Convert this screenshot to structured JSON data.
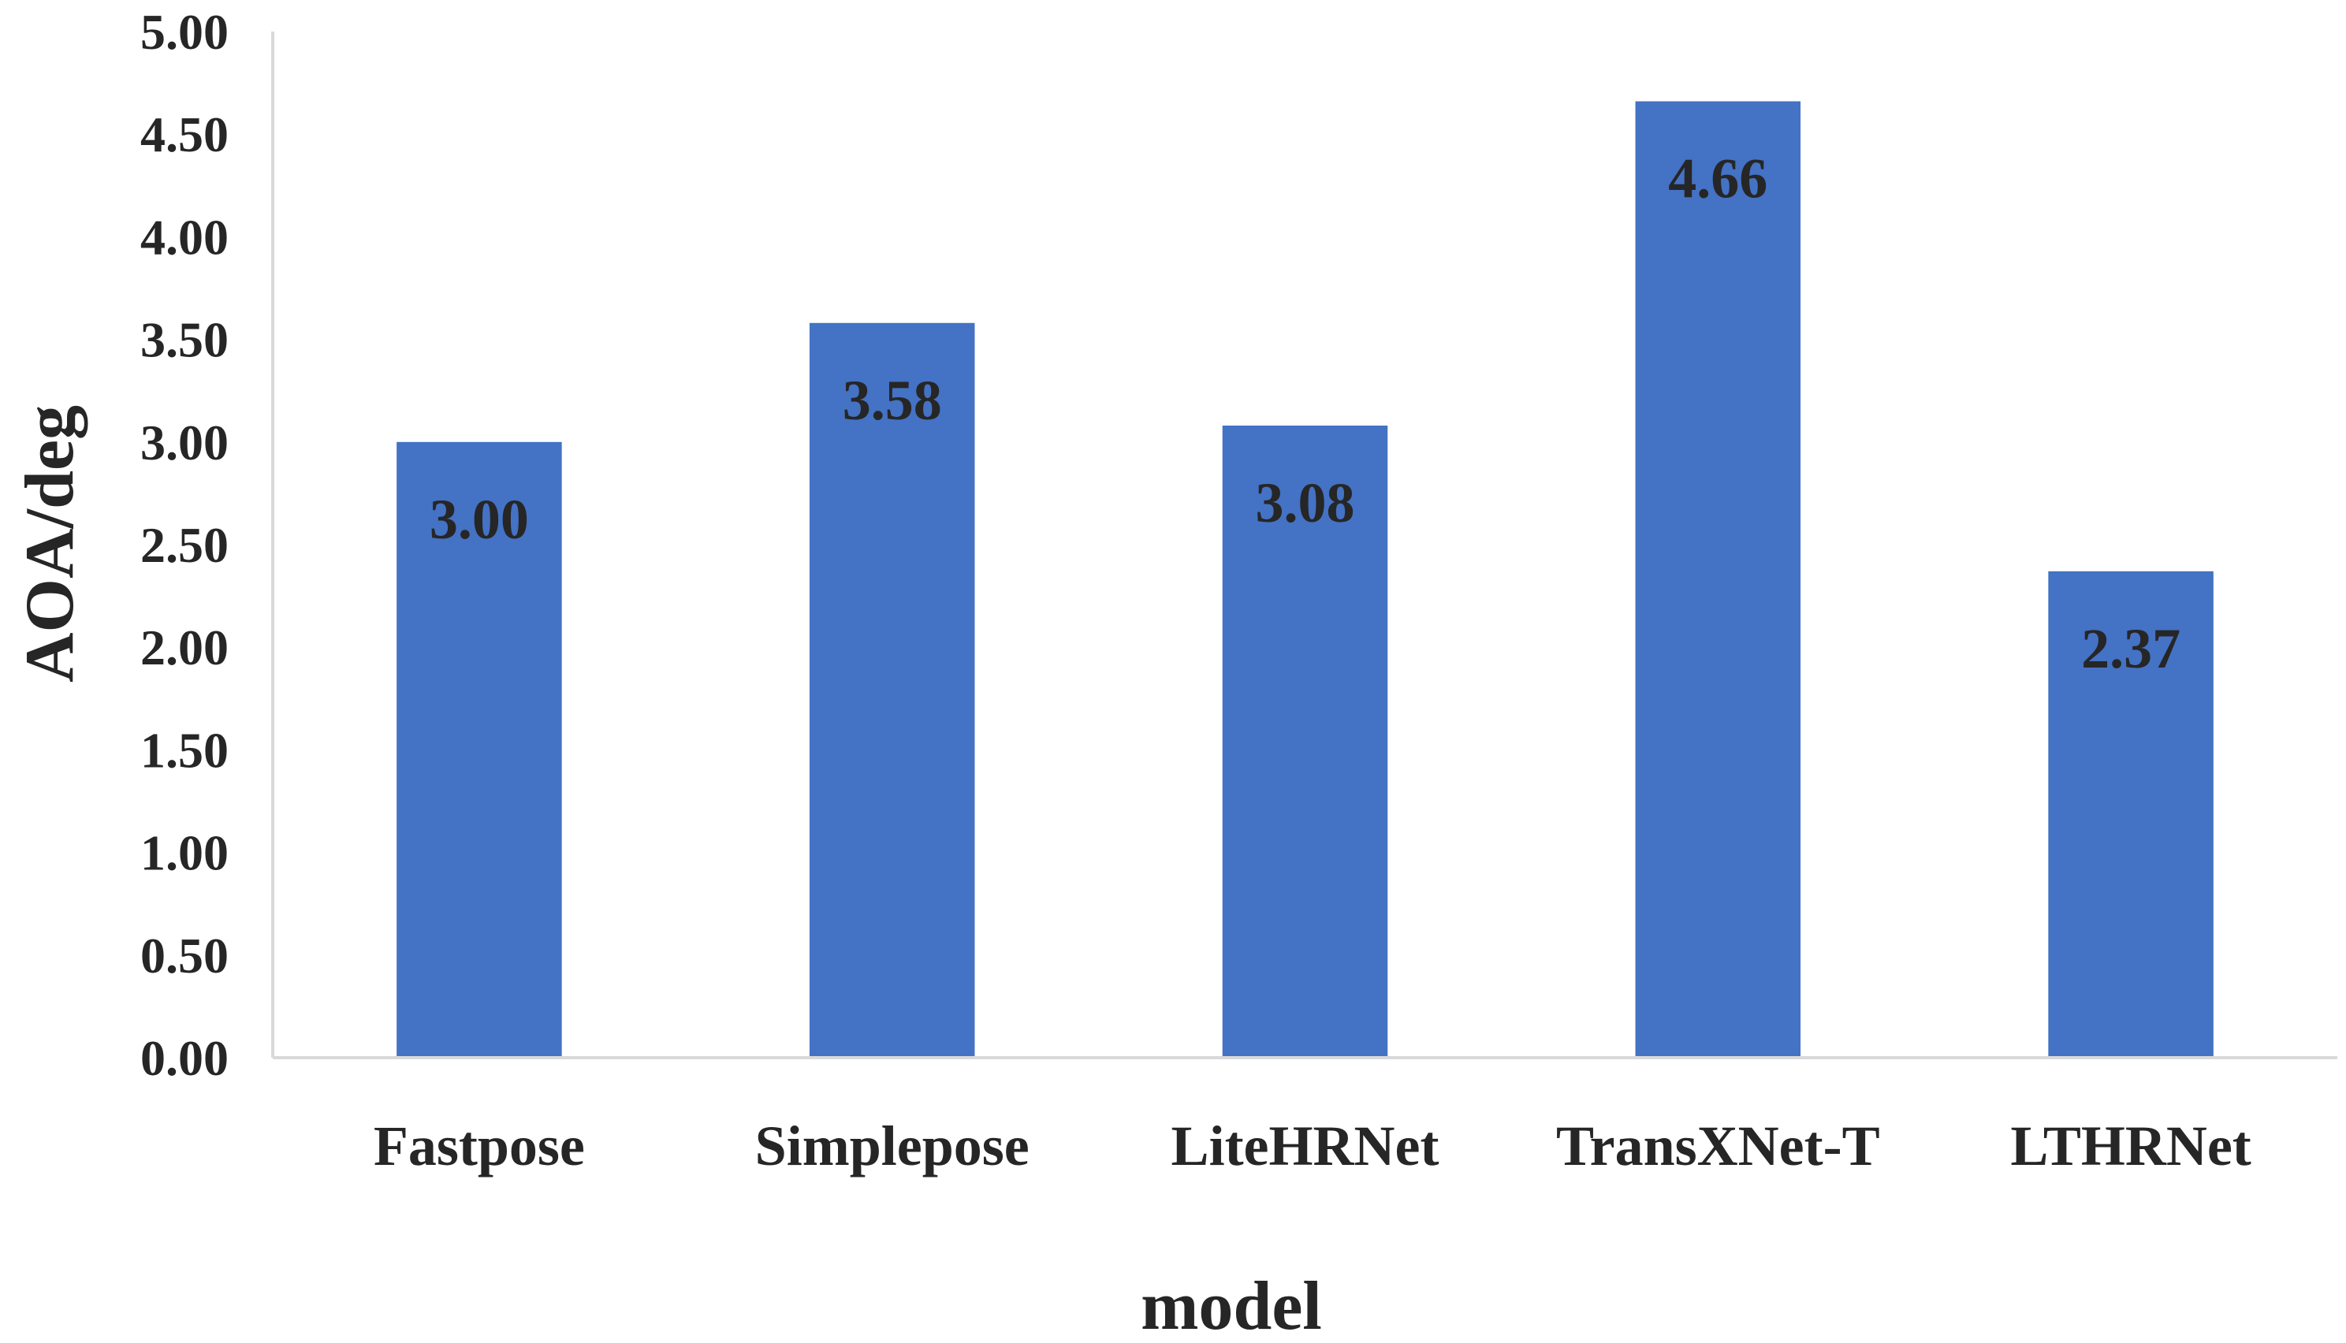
{
  "chart_data": {
    "type": "bar",
    "title": "",
    "xlabel": "model",
    "ylabel": "AOA/deg",
    "categories": [
      "Fastpose",
      "Simplepose",
      "LiteHRNet",
      "TransXNet-T",
      "LTHRNet"
    ],
    "values": [
      3.0,
      3.58,
      3.08,
      4.66,
      2.37
    ],
    "value_labels": [
      "3.00",
      "3.58",
      "3.08",
      "4.66",
      "2.37"
    ],
    "ylim": [
      0,
      5
    ],
    "yticks": [
      0,
      0.5,
      1,
      1.5,
      2,
      2.5,
      3,
      3.5,
      4,
      4.5,
      5
    ],
    "ytick_labels": [
      "0.00",
      "0.50",
      "1.00",
      "1.50",
      "2.00",
      "2.50",
      "3.00",
      "3.50",
      "4.00",
      "4.50",
      "5.00"
    ],
    "grid": false,
    "legend": "none",
    "bar_color": "#4472C4",
    "axis_color": "#D9D9D9",
    "text_color": "#262626"
  }
}
